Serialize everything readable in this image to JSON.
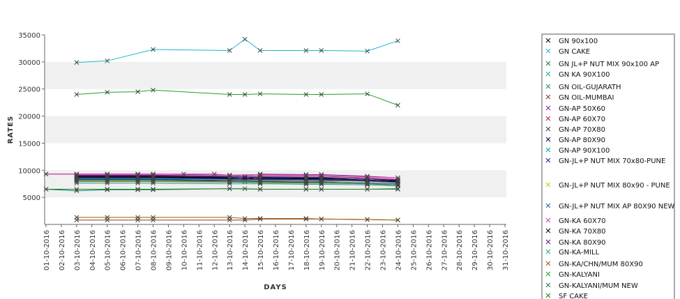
{
  "chart_data": {
    "type": "line",
    "xlabel": "DAYS",
    "ylabel": "RATES",
    "ylim": [
      0,
      35000
    ],
    "yticks": [
      5000,
      10000,
      15000,
      20000,
      25000,
      30000,
      35000
    ],
    "grid": "alternating horizontal bands",
    "legend_position": "right",
    "categories": [
      "01-10-2016",
      "02-10-2016",
      "03-10-2016",
      "04-10-2016",
      "05-10-2016",
      "06-10-2016",
      "07-10-2016",
      "08-10-2016",
      "09-10-2016",
      "10-10-2016",
      "11-10-2016",
      "12-10-2016",
      "13-10-2016",
      "14-10-2016",
      "15-10-2016",
      "16-10-2016",
      "17-10-2016",
      "18-10-2016",
      "19-10-2016",
      "20-10-2016",
      "21-10-2016",
      "22-10-2016",
      "23-10-2016",
      "24-10-2016",
      "25-10-2016",
      "26-10-2016",
      "27-10-2016",
      "28-10-2016",
      "29-10-2016",
      "30-10-2016",
      "31-10-2016"
    ],
    "series": [
      {
        "name": "GN 90x100",
        "color": "#000000",
        "points": [
          [
            "03-10-2016",
            8200
          ],
          [
            "05-10-2016",
            8200
          ],
          [
            "07-10-2016",
            8200
          ],
          [
            "08-10-2016",
            8200
          ],
          [
            "13-10-2016",
            8000
          ],
          [
            "14-10-2016",
            7900
          ],
          [
            "15-10-2016",
            7900
          ],
          [
            "18-10-2016",
            7800
          ],
          [
            "19-10-2016",
            7800
          ],
          [
            "22-10-2016",
            7500
          ],
          [
            "24-10-2016",
            7300
          ]
        ]
      },
      {
        "name": "GN CAKE",
        "color": "#18b6cc",
        "points": [
          [
            "03-10-2016",
            29900
          ],
          [
            "05-10-2016",
            30200
          ],
          [
            "08-10-2016",
            32300
          ],
          [
            "13-10-2016",
            32100
          ],
          [
            "14-10-2016",
            34200
          ],
          [
            "15-10-2016",
            32100
          ],
          [
            "18-10-2016",
            32100
          ],
          [
            "19-10-2016",
            32100
          ],
          [
            "22-10-2016",
            32000
          ],
          [
            "24-10-2016",
            33900
          ]
        ]
      },
      {
        "name": "GN JL+P NUT MIX 90x100 AP",
        "color": "#2a6f3a",
        "points": [
          [
            "03-10-2016",
            8400
          ],
          [
            "05-10-2016",
            8400
          ],
          [
            "07-10-2016",
            8400
          ],
          [
            "08-10-2016",
            8400
          ],
          [
            "13-10-2016",
            8300
          ],
          [
            "14-10-2016",
            8200
          ],
          [
            "15-10-2016",
            8200
          ],
          [
            "19-10-2016",
            8100
          ],
          [
            "22-10-2016",
            8000
          ],
          [
            "24-10-2016",
            7800
          ]
        ]
      },
      {
        "name": "GN KA 90X100",
        "color": "#10a5a5",
        "points": [
          [
            "03-10-2016",
            8600
          ],
          [
            "05-10-2016",
            8600
          ],
          [
            "07-10-2016",
            8600
          ],
          [
            "08-10-2016",
            8500
          ],
          [
            "13-10-2016",
            8400
          ],
          [
            "15-10-2016",
            8300
          ],
          [
            "18-10-2016",
            8200
          ],
          [
            "19-10-2016",
            8200
          ],
          [
            "22-10-2016",
            8100
          ],
          [
            "24-10-2016",
            8000
          ]
        ]
      },
      {
        "name": "GN OIL-GUJARATH",
        "color": "#0f8a78",
        "points": [
          [
            "01-10-2016",
            6500
          ],
          [
            "03-10-2016",
            6200
          ],
          [
            "05-10-2016",
            6400
          ],
          [
            "07-10-2016",
            6400
          ],
          [
            "08-10-2016",
            6400
          ],
          [
            "13-10-2016",
            6600
          ],
          [
            "14-10-2016",
            6600
          ],
          [
            "15-10-2016",
            6500
          ],
          [
            "18-10-2016",
            6500
          ],
          [
            "19-10-2016",
            6500
          ],
          [
            "22-10-2016",
            6500
          ],
          [
            "24-10-2016",
            6500
          ]
        ]
      },
      {
        "name": "GN OIL-MUMBAI",
        "color": "#8a3a1a",
        "points": [
          [
            "03-10-2016",
            800
          ],
          [
            "05-10-2016",
            800
          ],
          [
            "07-10-2016",
            800
          ],
          [
            "08-10-2016",
            800
          ],
          [
            "13-10-2016",
            800
          ],
          [
            "14-10-2016",
            800
          ],
          [
            "15-10-2016",
            1000
          ],
          [
            "18-10-2016",
            1000
          ],
          [
            "19-10-2016",
            1000
          ],
          [
            "22-10-2016",
            900
          ],
          [
            "24-10-2016",
            800
          ]
        ]
      },
      {
        "name": "GN-AP 50X60",
        "color": "#7a1fa0",
        "points": [
          [
            "01-10-2016",
            9300
          ],
          [
            "03-10-2016",
            9300
          ],
          [
            "05-10-2016",
            9300
          ],
          [
            "07-10-2016",
            9300
          ],
          [
            "08-10-2016",
            9300
          ],
          [
            "13-10-2016",
            9100
          ],
          [
            "14-10-2016",
            8900
          ],
          [
            "15-10-2016",
            9300
          ],
          [
            "18-10-2016",
            9200
          ],
          [
            "19-10-2016",
            9200
          ],
          [
            "22-10-2016",
            8900
          ],
          [
            "24-10-2016",
            8600
          ]
        ]
      },
      {
        "name": "GN-AP 60X70",
        "color": "#b01060",
        "points": [
          [
            "03-10-2016",
            9100
          ],
          [
            "05-10-2016",
            9100
          ],
          [
            "07-10-2016",
            9100
          ],
          [
            "08-10-2016",
            9100
          ],
          [
            "13-10-2016",
            8900
          ],
          [
            "14-10-2016",
            8700
          ],
          [
            "15-10-2016",
            9000
          ],
          [
            "18-10-2016",
            8900
          ],
          [
            "19-10-2016",
            8900
          ],
          [
            "22-10-2016",
            8600
          ],
          [
            "24-10-2016",
            8300
          ]
        ]
      },
      {
        "name": "GN-AP 70X80",
        "color": "#3a3a3a",
        "points": [
          [
            "03-10-2016",
            8900
          ],
          [
            "05-10-2016",
            8900
          ],
          [
            "07-10-2016",
            8900
          ],
          [
            "08-10-2016",
            8900
          ],
          [
            "13-10-2016",
            8700
          ],
          [
            "14-10-2016",
            8500
          ],
          [
            "15-10-2016",
            8800
          ],
          [
            "18-10-2016",
            8700
          ],
          [
            "19-10-2016",
            8700
          ],
          [
            "22-10-2016",
            8400
          ],
          [
            "24-10-2016",
            8100
          ]
        ]
      },
      {
        "name": "GN-AP 80X90",
        "color": "#000040",
        "points": [
          [
            "03-10-2016",
            8700
          ],
          [
            "05-10-2016",
            8700
          ],
          [
            "07-10-2016",
            8700
          ],
          [
            "08-10-2016",
            8700
          ],
          [
            "13-10-2016",
            8500
          ],
          [
            "14-10-2016",
            8300
          ],
          [
            "15-10-2016",
            8600
          ],
          [
            "18-10-2016",
            8500
          ],
          [
            "19-10-2016",
            8500
          ],
          [
            "22-10-2016",
            8200
          ],
          [
            "24-10-2016",
            7900
          ]
        ]
      },
      {
        "name": "GN-AP 90X100",
        "color": "#00a0a0",
        "points": [
          [
            "03-10-2016",
            8500
          ],
          [
            "05-10-2016",
            8500
          ],
          [
            "07-10-2016",
            8500
          ],
          [
            "08-10-2016",
            8500
          ],
          [
            "13-10-2016",
            8300
          ],
          [
            "14-10-2016",
            8100
          ],
          [
            "15-10-2016",
            8400
          ],
          [
            "18-10-2016",
            8300
          ],
          [
            "19-10-2016",
            8300
          ],
          [
            "22-10-2016",
            8000
          ],
          [
            "24-10-2016",
            7700
          ]
        ]
      },
      {
        "name": "GN-JL+P NUT MIX 70x80-PUNE",
        "color": "#3b0aa0",
        "points": [
          [
            "03-10-2016",
            9000
          ],
          [
            "05-10-2016",
            9000
          ],
          [
            "07-10-2016",
            9000
          ],
          [
            "08-10-2016",
            9000
          ],
          [
            "13-10-2016",
            8800
          ],
          [
            "15-10-2016",
            8700
          ],
          [
            "18-10-2016",
            8600
          ],
          [
            "19-10-2016",
            8600
          ],
          [
            "22-10-2016",
            8400
          ],
          [
            "24-10-2016",
            8200
          ]
        ]
      },
      {
        "name": "GN-JL+P NUT MIX 80x90 - PUNE",
        "color": "#c8c800",
        "points": [
          [
            "03-10-2016",
            8000
          ],
          [
            "05-10-2016",
            8000
          ],
          [
            "07-10-2016",
            8000
          ],
          [
            "08-10-2016",
            8000
          ],
          [
            "13-10-2016",
            7900
          ],
          [
            "15-10-2016",
            7800
          ],
          [
            "18-10-2016",
            7700
          ],
          [
            "19-10-2016",
            7700
          ],
          [
            "22-10-2016",
            7600
          ],
          [
            "24-10-2016",
            7400
          ]
        ]
      },
      {
        "name": "GN-JL+P NUT MIX AP 80X90 NEW",
        "color": "#1f5fa0",
        "points": [
          [
            "03-10-2016",
            8300
          ],
          [
            "05-10-2016",
            8300
          ],
          [
            "07-10-2016",
            8300
          ],
          [
            "08-10-2016",
            8300
          ],
          [
            "13-10-2016",
            8100
          ],
          [
            "15-10-2016",
            8000
          ],
          [
            "18-10-2016",
            7900
          ],
          [
            "19-10-2016",
            7900
          ],
          [
            "22-10-2016",
            7700
          ],
          [
            "24-10-2016",
            7500
          ]
        ]
      },
      {
        "name": "GN-KA 60X70",
        "color": "#d03aa0",
        "points": [
          [
            "01-10-2016",
            9300
          ],
          [
            "03-10-2016",
            9300
          ],
          [
            "05-10-2016",
            9300
          ],
          [
            "07-10-2016",
            9300
          ],
          [
            "08-10-2016",
            9300
          ],
          [
            "10-10-2016",
            9300
          ],
          [
            "12-10-2016",
            9300
          ],
          [
            "13-10-2016",
            9100
          ],
          [
            "15-10-2016",
            9200
          ],
          [
            "18-10-2016",
            9100
          ],
          [
            "19-10-2016",
            9100
          ],
          [
            "22-10-2016",
            8800
          ],
          [
            "24-10-2016",
            8600
          ]
        ]
      },
      {
        "name": "GN-KA 70X80",
        "color": "#000000",
        "points": [
          [
            "03-10-2016",
            8800
          ],
          [
            "05-10-2016",
            8800
          ],
          [
            "07-10-2016",
            8800
          ],
          [
            "08-10-2016",
            8800
          ],
          [
            "13-10-2016",
            8600
          ],
          [
            "15-10-2016",
            8500
          ],
          [
            "18-10-2016",
            8400
          ],
          [
            "19-10-2016",
            8400
          ],
          [
            "22-10-2016",
            8200
          ],
          [
            "24-10-2016",
            8000
          ]
        ]
      },
      {
        "name": "GN-KA 80X90",
        "color": "#5a1080",
        "points": [
          [
            "03-10-2016",
            8600
          ],
          [
            "05-10-2016",
            8600
          ],
          [
            "07-10-2016",
            8600
          ],
          [
            "08-10-2016",
            8600
          ],
          [
            "13-10-2016",
            8400
          ],
          [
            "15-10-2016",
            8300
          ],
          [
            "18-10-2016",
            8200
          ],
          [
            "19-10-2016",
            8200
          ],
          [
            "22-10-2016",
            8000
          ],
          [
            "24-10-2016",
            7800
          ]
        ]
      },
      {
        "name": "GN-KA-MILL",
        "color": "#2aa080",
        "points": [
          [
            "03-10-2016",
            7600
          ],
          [
            "05-10-2016",
            7600
          ],
          [
            "07-10-2016",
            7600
          ],
          [
            "08-10-2016",
            7600
          ],
          [
            "13-10-2016",
            7500
          ],
          [
            "15-10-2016",
            7500
          ],
          [
            "18-10-2016",
            7400
          ],
          [
            "19-10-2016",
            7400
          ],
          [
            "22-10-2016",
            7300
          ],
          [
            "24-10-2016",
            7100
          ]
        ]
      },
      {
        "name": "GN-KA/CHN/MUM 80X90",
        "color": "#a05a00",
        "points": [
          [
            "03-10-2016",
            1300
          ],
          [
            "05-10-2016",
            1300
          ],
          [
            "07-10-2016",
            1300
          ],
          [
            "08-10-2016",
            1300
          ],
          [
            "13-10-2016",
            1300
          ],
          [
            "14-10-2016",
            1100
          ],
          [
            "15-10-2016",
            1100
          ],
          [
            "18-10-2016",
            1100
          ],
          [
            "19-10-2016",
            1000
          ],
          [
            "22-10-2016",
            900
          ],
          [
            "24-10-2016",
            800
          ]
        ]
      },
      {
        "name": "GN-KALYANI",
        "color": "#20a020",
        "points": [
          [
            "03-10-2016",
            24000
          ],
          [
            "05-10-2016",
            24400
          ],
          [
            "07-10-2016",
            24500
          ],
          [
            "08-10-2016",
            24800
          ],
          [
            "13-10-2016",
            24000
          ],
          [
            "14-10-2016",
            24000
          ],
          [
            "15-10-2016",
            24100
          ],
          [
            "18-10-2016",
            24000
          ],
          [
            "19-10-2016",
            24000
          ],
          [
            "22-10-2016",
            24100
          ],
          [
            "24-10-2016",
            22000
          ]
        ]
      },
      {
        "name": "GN-KALYANI/MUM NEW",
        "color": "#2a6a6a",
        "points": [
          [
            "03-10-2016",
            7900
          ],
          [
            "05-10-2016",
            7900
          ],
          [
            "07-10-2016",
            7900
          ],
          [
            "08-10-2016",
            7900
          ],
          [
            "13-10-2016",
            7800
          ],
          [
            "15-10-2016",
            7700
          ],
          [
            "18-10-2016",
            7600
          ],
          [
            "19-10-2016",
            7600
          ],
          [
            "22-10-2016",
            7500
          ],
          [
            "24-10-2016",
            7300
          ]
        ]
      },
      {
        "name": "SF CAKE",
        "color": "#1a7a1a",
        "points": [
          [
            "01-10-2016",
            6500
          ],
          [
            "03-10-2016",
            6500
          ],
          [
            "05-10-2016",
            6500
          ],
          [
            "07-10-2016",
            6500
          ],
          [
            "08-10-2016",
            6500
          ],
          [
            "13-10-2016",
            6600
          ],
          [
            "15-10-2016",
            6500
          ],
          [
            "18-10-2016",
            6500
          ],
          [
            "19-10-2016",
            6500
          ],
          [
            "22-10-2016",
            6500
          ],
          [
            "24-10-2016",
            6600
          ]
        ]
      }
    ]
  }
}
